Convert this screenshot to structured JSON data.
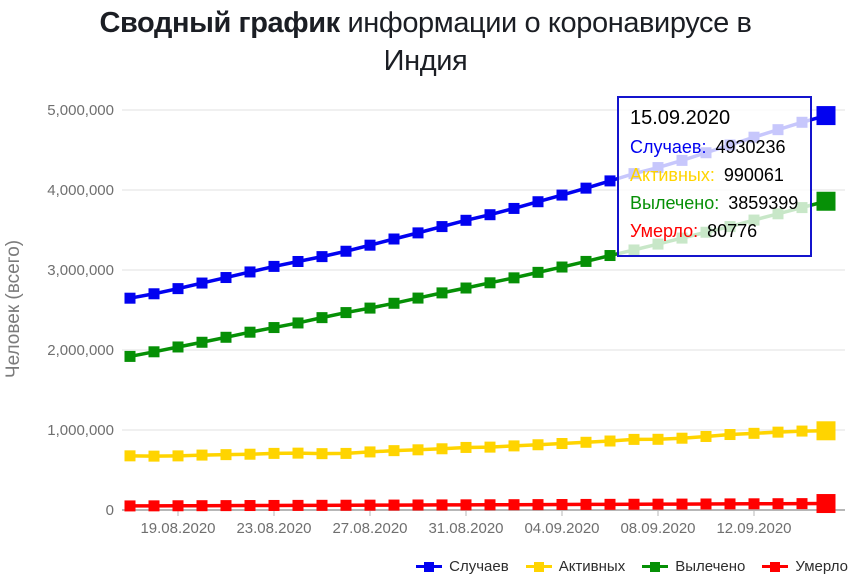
{
  "header": {
    "title_bold": "Сводный график",
    "title_rest": " информации о коронавирусе в",
    "title_line2": "Индия"
  },
  "y_axis": {
    "label": "Человек (всего)",
    "tick_labels": [
      "0",
      "1,000,000",
      "2,000,000",
      "3,000,000",
      "4,000,000",
      "5,000,000"
    ]
  },
  "x_axis": {
    "tick_labels": [
      "19.08.2020",
      "23.08.2020",
      "27.08.2020",
      "31.08.2020",
      "04.09.2020",
      "08.09.2020",
      "12.09.2020"
    ]
  },
  "tooltip": {
    "date": "15.09.2020",
    "rows": [
      {
        "label": "Случаев:",
        "value": "4930236",
        "color": "#0202f0"
      },
      {
        "label": "Активных:",
        "value": "990061",
        "color": "#ffd400"
      },
      {
        "label": "Вылечено:",
        "value": "3859399",
        "color": "#069006"
      },
      {
        "label": "Умерло:",
        "value": "80776",
        "color": "#ff0000"
      }
    ],
    "border_color": "#1414cd"
  },
  "legend": {
    "items": [
      {
        "label": "Случаев",
        "color": "#0202f0"
      },
      {
        "label": "Активных",
        "color": "#ffd400"
      },
      {
        "label": "Вылечено",
        "color": "#069006"
      },
      {
        "label": "Умерло",
        "color": "#ff0000"
      }
    ]
  },
  "chart_data": {
    "type": "line",
    "title": "Сводный график информации о коронавирусе в Индия",
    "ylabel": "Человек (всего)",
    "ylim": [
      0,
      5000000
    ],
    "grid": "horizontal",
    "legend_position": "bottom-right",
    "highlighted_x": "15.09.2020",
    "x": [
      "17.08.2020",
      "18.08.2020",
      "19.08.2020",
      "20.08.2020",
      "21.08.2020",
      "22.08.2020",
      "23.08.2020",
      "24.08.2020",
      "25.08.2020",
      "26.08.2020",
      "27.08.2020",
      "28.08.2020",
      "29.08.2020",
      "30.08.2020",
      "31.08.2020",
      "01.09.2020",
      "02.09.2020",
      "03.09.2020",
      "04.09.2020",
      "05.09.2020",
      "06.09.2020",
      "07.09.2020",
      "08.09.2020",
      "09.09.2020",
      "10.09.2020",
      "11.09.2020",
      "12.09.2020",
      "13.09.2020",
      "14.09.2020",
      "15.09.2020"
    ],
    "x_tick_indices": [
      2,
      6,
      10,
      14,
      18,
      22,
      26
    ],
    "series": [
      {
        "key": "cases",
        "name": "Случаев",
        "color": "#0202f0",
        "values": [
          2647663,
          2702742,
          2767253,
          2836925,
          2905823,
          2975701,
          3044940,
          3106348,
          3167323,
          3234474,
          3310234,
          3387500,
          3463972,
          3542733,
          3621245,
          3691166,
          3769523,
          3853406,
          3936747,
          4023179,
          4113811,
          4204613,
          4280422,
          4370128,
          4465863,
          4562414,
          4659984,
          4754356,
          4846427,
          4930236
        ]
      },
      {
        "key": "active",
        "name": "Активных",
        "color": "#ffd400",
        "values": [
          676900,
          673274,
          676549,
          686395,
          692028,
          697330,
          707668,
          710771,
          704348,
          707267,
          725991,
          742023,
          752424,
          765302,
          781975,
          785996,
          801282,
          815538,
          831124,
          846395,
          862320,
          882542,
          883697,
          897394,
          919018,
          943480,
          958316,
          973175,
          986598,
          990061
        ]
      },
      {
        "key": "recovered",
        "name": "Вылечено",
        "color": "#069006",
        "values": [
          1919842,
          1977671,
          2037816,
          2096664,
          2158946,
          2222577,
          2280566,
          2338035,
          2404585,
          2467758,
          2523771,
          2583948,
          2648998,
          2713933,
          2774801,
          2839882,
          2901908,
          2970492,
          3037151,
          3107223,
          3180865,
          3250429,
          3323950,
          3398844,
          3471783,
          3542663,
          3624196,
          3702595,
          3780107,
          3859399
        ]
      },
      {
        "key": "deaths",
        "name": "Умерло",
        "color": "#ff0000",
        "values": [
          50921,
          51797,
          52888,
          53866,
          54849,
          55794,
          56706,
          57542,
          58390,
          59449,
          60472,
          61529,
          62550,
          63498,
          64469,
          65288,
          66333,
          67376,
          68472,
          69561,
          70626,
          71642,
          72775,
          73890,
          75062,
          76271,
          77472,
          78586,
          79722,
          80776
        ]
      }
    ]
  }
}
